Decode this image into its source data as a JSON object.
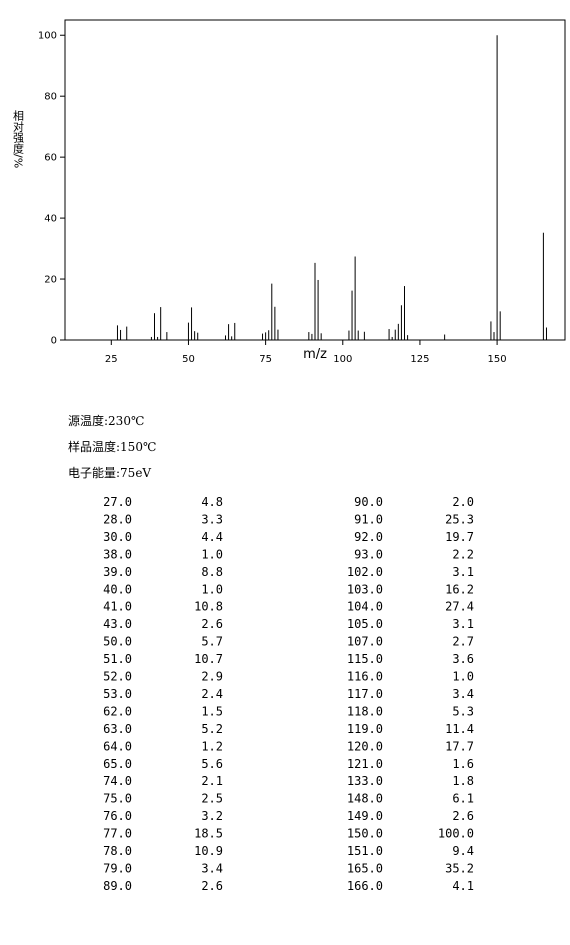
{
  "chart_data": {
    "type": "stick",
    "ylabel": "相对强度/%",
    "xlabel": "m/z",
    "x": [
      27,
      28,
      30,
      38,
      39,
      40,
      41,
      43,
      50,
      51,
      52,
      53,
      62,
      63,
      64,
      65,
      74,
      75,
      76,
      77,
      78,
      79,
      89,
      90,
      91,
      92,
      93,
      102,
      103,
      104,
      105,
      107,
      115,
      116,
      117,
      118,
      119,
      120,
      121,
      133,
      148,
      149,
      150,
      151,
      165,
      166
    ],
    "values": [
      4.8,
      3.3,
      4.4,
      1.0,
      8.8,
      1.0,
      10.8,
      2.6,
      5.7,
      10.7,
      2.9,
      2.4,
      1.5,
      5.2,
      1.2,
      5.6,
      2.1,
      2.5,
      3.2,
      18.5,
      10.9,
      3.4,
      2.6,
      2.0,
      25.3,
      19.7,
      2.2,
      3.1,
      16.2,
      27.4,
      3.1,
      2.7,
      3.6,
      1.0,
      3.4,
      5.3,
      11.4,
      17.7,
      1.6,
      1.8,
      6.1,
      2.6,
      100.0,
      9.4,
      35.2,
      4.1
    ],
    "color": "#000000",
    "xlim": [
      10,
      172
    ],
    "ylim": [
      0,
      105
    ],
    "xticks": [
      25,
      50,
      75,
      100,
      125,
      150
    ],
    "yticks": [
      0,
      20,
      40,
      60,
      80,
      100
    ]
  },
  "info": [
    "源温度:230℃",
    "样品温度:150℃",
    "电子能量:75eV"
  ],
  "table": {
    "rows": [
      [
        "27.0",
        "4.8"
      ],
      [
        "28.0",
        "3.3"
      ],
      [
        "30.0",
        "4.4"
      ],
      [
        "38.0",
        "1.0"
      ],
      [
        "39.0",
        "8.8"
      ],
      [
        "40.0",
        "1.0"
      ],
      [
        "41.0",
        "10.8"
      ],
      [
        "43.0",
        "2.6"
      ],
      [
        "50.0",
        "5.7"
      ],
      [
        "51.0",
        "10.7"
      ],
      [
        "52.0",
        "2.9"
      ],
      [
        "53.0",
        "2.4"
      ],
      [
        "62.0",
        "1.5"
      ],
      [
        "63.0",
        "5.2"
      ],
      [
        "64.0",
        "1.2"
      ],
      [
        "65.0",
        "5.6"
      ],
      [
        "74.0",
        "2.1"
      ],
      [
        "75.0",
        "2.5"
      ],
      [
        "76.0",
        "3.2"
      ],
      [
        "77.0",
        "18.5"
      ],
      [
        "78.0",
        "10.9"
      ],
      [
        "79.0",
        "3.4"
      ],
      [
        "89.0",
        "2.6"
      ],
      [
        "90.0",
        "2.0"
      ],
      [
        "91.0",
        "25.3"
      ],
      [
        "92.0",
        "19.7"
      ],
      [
        "93.0",
        "2.2"
      ],
      [
        "102.0",
        "3.1"
      ],
      [
        "103.0",
        "16.2"
      ],
      [
        "104.0",
        "27.4"
      ],
      [
        "105.0",
        "3.1"
      ],
      [
        "107.0",
        "2.7"
      ],
      [
        "115.0",
        "3.6"
      ],
      [
        "116.0",
        "1.0"
      ],
      [
        "117.0",
        "3.4"
      ],
      [
        "118.0",
        "5.3"
      ],
      [
        "119.0",
        "11.4"
      ],
      [
        "120.0",
        "17.7"
      ],
      [
        "121.0",
        "1.6"
      ],
      [
        "133.0",
        "1.8"
      ],
      [
        "148.0",
        "6.1"
      ],
      [
        "149.0",
        "2.6"
      ],
      [
        "150.0",
        "100.0"
      ],
      [
        "151.0",
        "9.4"
      ],
      [
        "165.0",
        "35.2"
      ],
      [
        "166.0",
        "4.1"
      ]
    ]
  }
}
